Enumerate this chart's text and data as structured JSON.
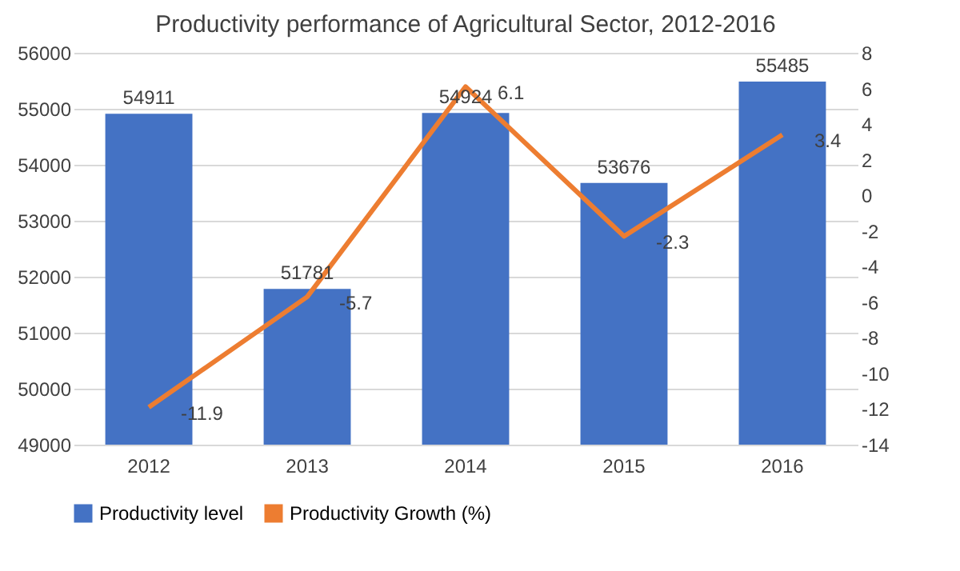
{
  "chart_data": {
    "type": "bar",
    "title": "Productivity performance of Agricultural Sector, 2012-2016",
    "categories": [
      "2012",
      "2013",
      "2014",
      "2015",
      "2016"
    ],
    "series": [
      {
        "name": "Productivity level",
        "color": "#4472c4",
        "values": [
          54911,
          51781,
          54924,
          53676,
          55485
        ]
      },
      {
        "name": "Productivity Growth (%)",
        "type": "line",
        "axis": "y2",
        "color": "#ed7d31",
        "values": [
          -11.9,
          -5.7,
          6.1,
          -2.3,
          3.4
        ]
      }
    ],
    "ylim": [
      49000,
      56000
    ],
    "yticks": [
      49000,
      50000,
      51000,
      52000,
      53000,
      54000,
      55000,
      56000
    ],
    "y2lim": [
      -14,
      8
    ],
    "y2ticks": [
      -14,
      -12,
      -10,
      -8,
      -6,
      -4,
      -2,
      0,
      2,
      4,
      6,
      8
    ],
    "data_labels": true,
    "grid": "y",
    "legend": "bottom",
    "marker": "none"
  }
}
